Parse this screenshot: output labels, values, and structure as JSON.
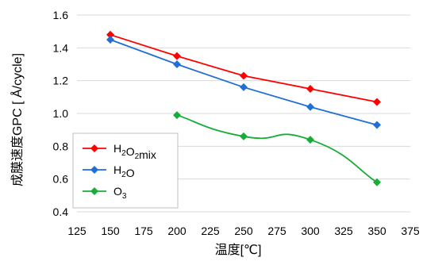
{
  "chart_data": {
    "type": "line",
    "xlabel": "温度[℃]",
    "ylabel": "成膜速度GPC [ Å/cycle]",
    "xlim": [
      125,
      375
    ],
    "ylim": [
      0.4,
      1.6
    ],
    "xticks": [
      "125",
      "150",
      "175",
      "200",
      "225",
      "250",
      "275",
      "300",
      "325",
      "350",
      "375"
    ],
    "yticks": [
      "0.4",
      "0.6",
      "0.8",
      "1.0",
      "1.2",
      "1.4",
      "1.6"
    ],
    "grid": "horizontal",
    "legend_position": "bottom-left",
    "series": [
      {
        "name": "H2O2mix",
        "color": "#ff0000",
        "marker": "diamond",
        "smooth": false,
        "x": [
          150,
          200,
          250,
          300,
          350
        ],
        "y": [
          1.48,
          1.35,
          1.23,
          1.15,
          1.07
        ]
      },
      {
        "name": "H2O",
        "color": "#1f6fd6",
        "marker": "diamond",
        "smooth": false,
        "x": [
          150,
          200,
          250,
          300,
          350
        ],
        "y": [
          1.45,
          1.3,
          1.16,
          1.04,
          0.93
        ]
      },
      {
        "name": "O3",
        "color": "#17ad36",
        "marker": "diamond",
        "smooth": true,
        "x": [
          200,
          250,
          300,
          350
        ],
        "y": [
          0.99,
          0.86,
          0.84,
          0.58
        ]
      }
    ]
  }
}
